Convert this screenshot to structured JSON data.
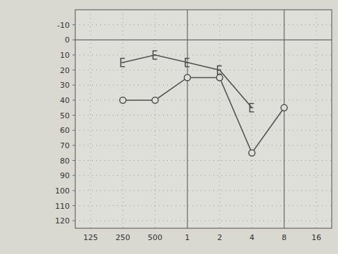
{
  "chart_data": {
    "type": "line",
    "categories": [
      "125",
      "250",
      "500",
      "1",
      "2",
      "4",
      "8",
      "16"
    ],
    "series": [
      {
        "color": "#505050",
        "marker": "bracket",
        "values": [
          null,
          15,
          10,
          15,
          20,
          45,
          null,
          null
        ]
      },
      {
        "color": "#505050",
        "marker": "circle",
        "values": [
          null,
          40,
          40,
          25,
          25,
          75,
          45,
          null
        ]
      }
    ],
    "ylim": [
      -20,
      125
    ],
    "yticks": [
      -10,
      0,
      10,
      20,
      30,
      40,
      50,
      60,
      70,
      80,
      90,
      100,
      110,
      120
    ],
    "grid": true
  }
}
